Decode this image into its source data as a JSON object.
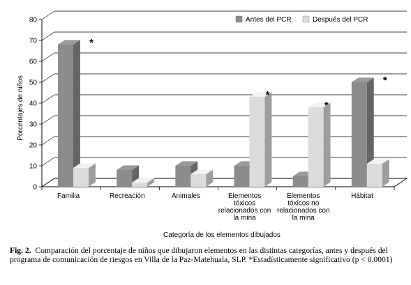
{
  "chart_data": {
    "type": "bar",
    "title": "",
    "xlabel": "Categoría de los elementos dibujados",
    "ylabel": "Porcentajes de niños",
    "ylim": [
      0,
      80
    ],
    "yticks": [
      0,
      10,
      20,
      30,
      40,
      50,
      60,
      70,
      80
    ],
    "grid": true,
    "three_d": true,
    "legend_position": "top-right",
    "categories": [
      [
        "Familia"
      ],
      [
        "Recreación"
      ],
      [
        "Animales"
      ],
      [
        "Elementos",
        "tóxicos",
        "relacionados con",
        "la mina"
      ],
      [
        "Elementos",
        "tóxicos no",
        "relacionados con",
        "la mina"
      ],
      [
        "Hábitat"
      ]
    ],
    "series": [
      {
        "name": "Antes del PCR",
        "color": "#8c8c8c",
        "values": [
          68,
          8,
          10,
          10,
          5,
          50
        ]
      },
      {
        "name": "Después del PCR",
        "color": "#dcdcdc",
        "values": [
          9,
          2,
          6,
          43,
          38,
          11
        ]
      }
    ],
    "annotations": [
      {
        "text": "*",
        "category_index": 0
      },
      {
        "text": "*",
        "category_index": 3
      },
      {
        "text": "*",
        "category_index": 4
      },
      {
        "text": "*",
        "category_index": 5
      }
    ]
  },
  "caption": {
    "label": "Fig. 2.",
    "text": "Comparación del porcentaje de niños que dibujaron elementos en las distintas categorías, antes y después del programa de comunicación de riesgos en Villa de la Paz-Matehuala, SLP. *Estadísticamente significativo (p < 0.0001)"
  }
}
